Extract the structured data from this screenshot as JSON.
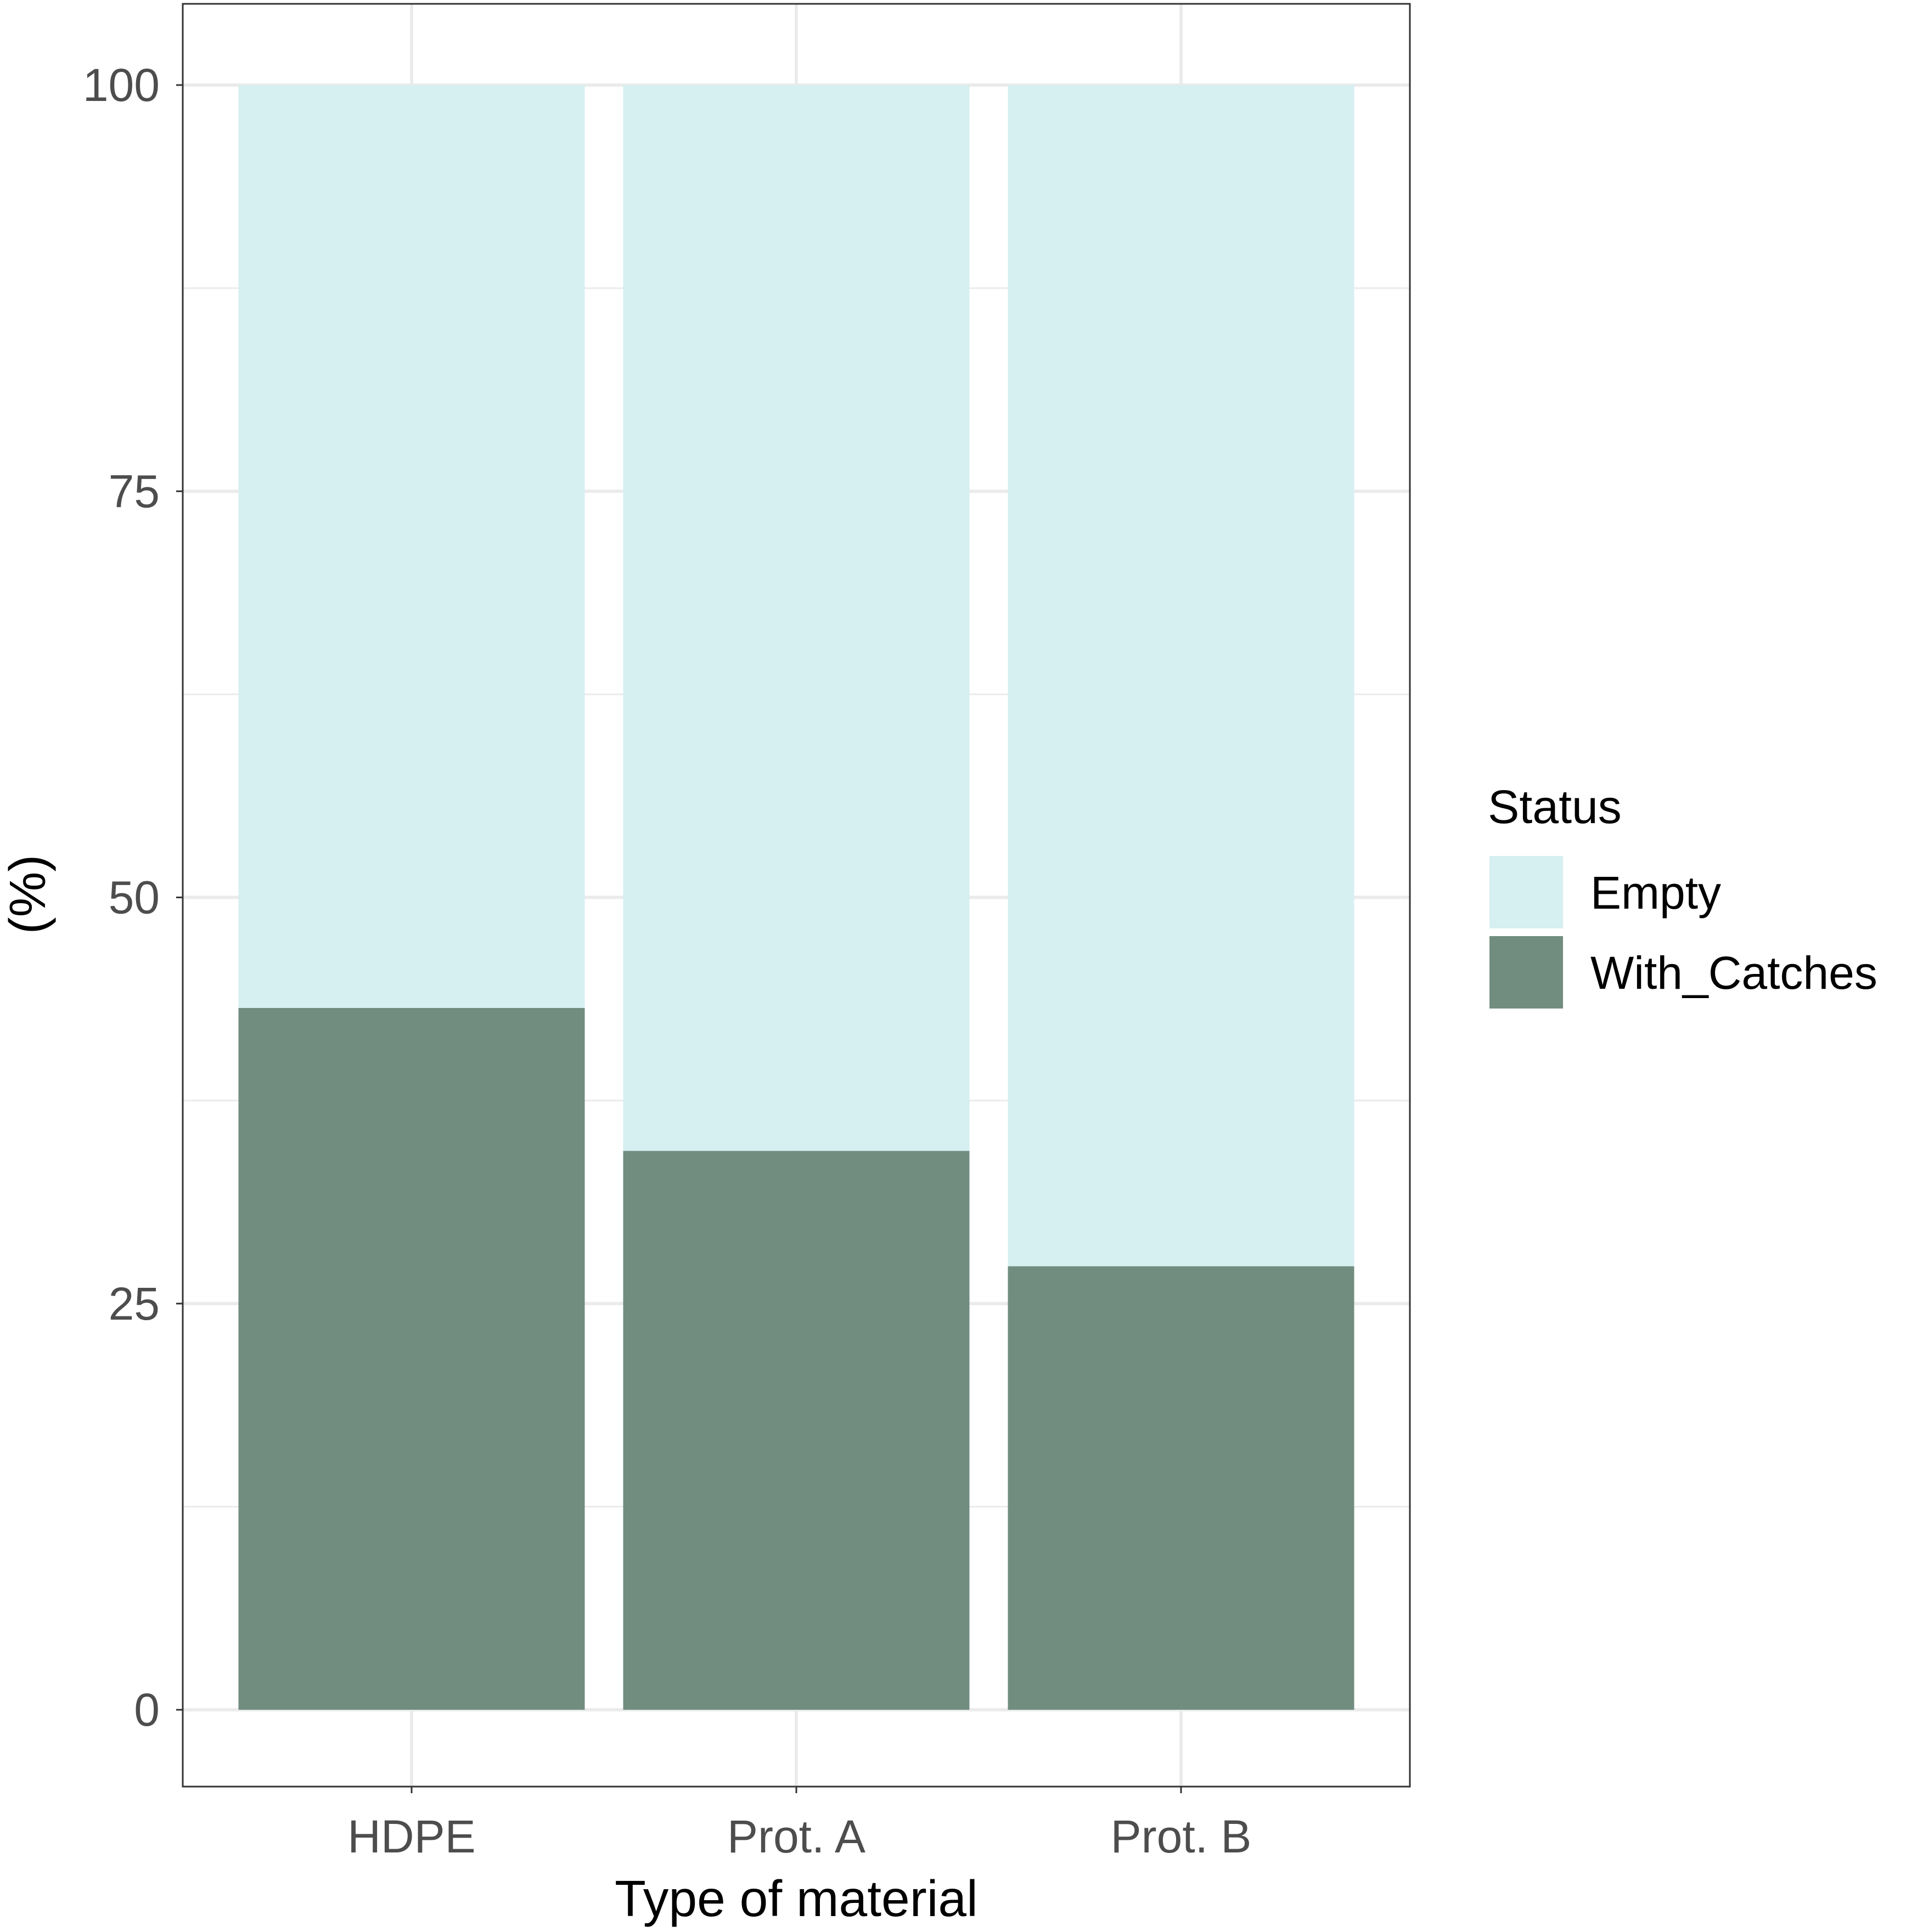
{
  "chart_data": {
    "type": "bar",
    "stacked": true,
    "categories": [
      "HDPE",
      "Prot. A",
      "Prot. B"
    ],
    "series": [
      {
        "name": "Empty",
        "values": [
          56.8,
          65.6,
          72.7
        ],
        "color": "#d6eff0"
      },
      {
        "name": "With_Catches",
        "values": [
          43.2,
          34.4,
          27.3
        ],
        "color": "#718d80"
      }
    ],
    "xlabel": "Type of material",
    "ylabel": "(%)",
    "ylim": [
      -5,
      105
    ],
    "yticks": [
      0,
      25,
      50,
      75,
      100
    ],
    "grid": true,
    "legend": {
      "title": "Status",
      "position": "right"
    }
  }
}
